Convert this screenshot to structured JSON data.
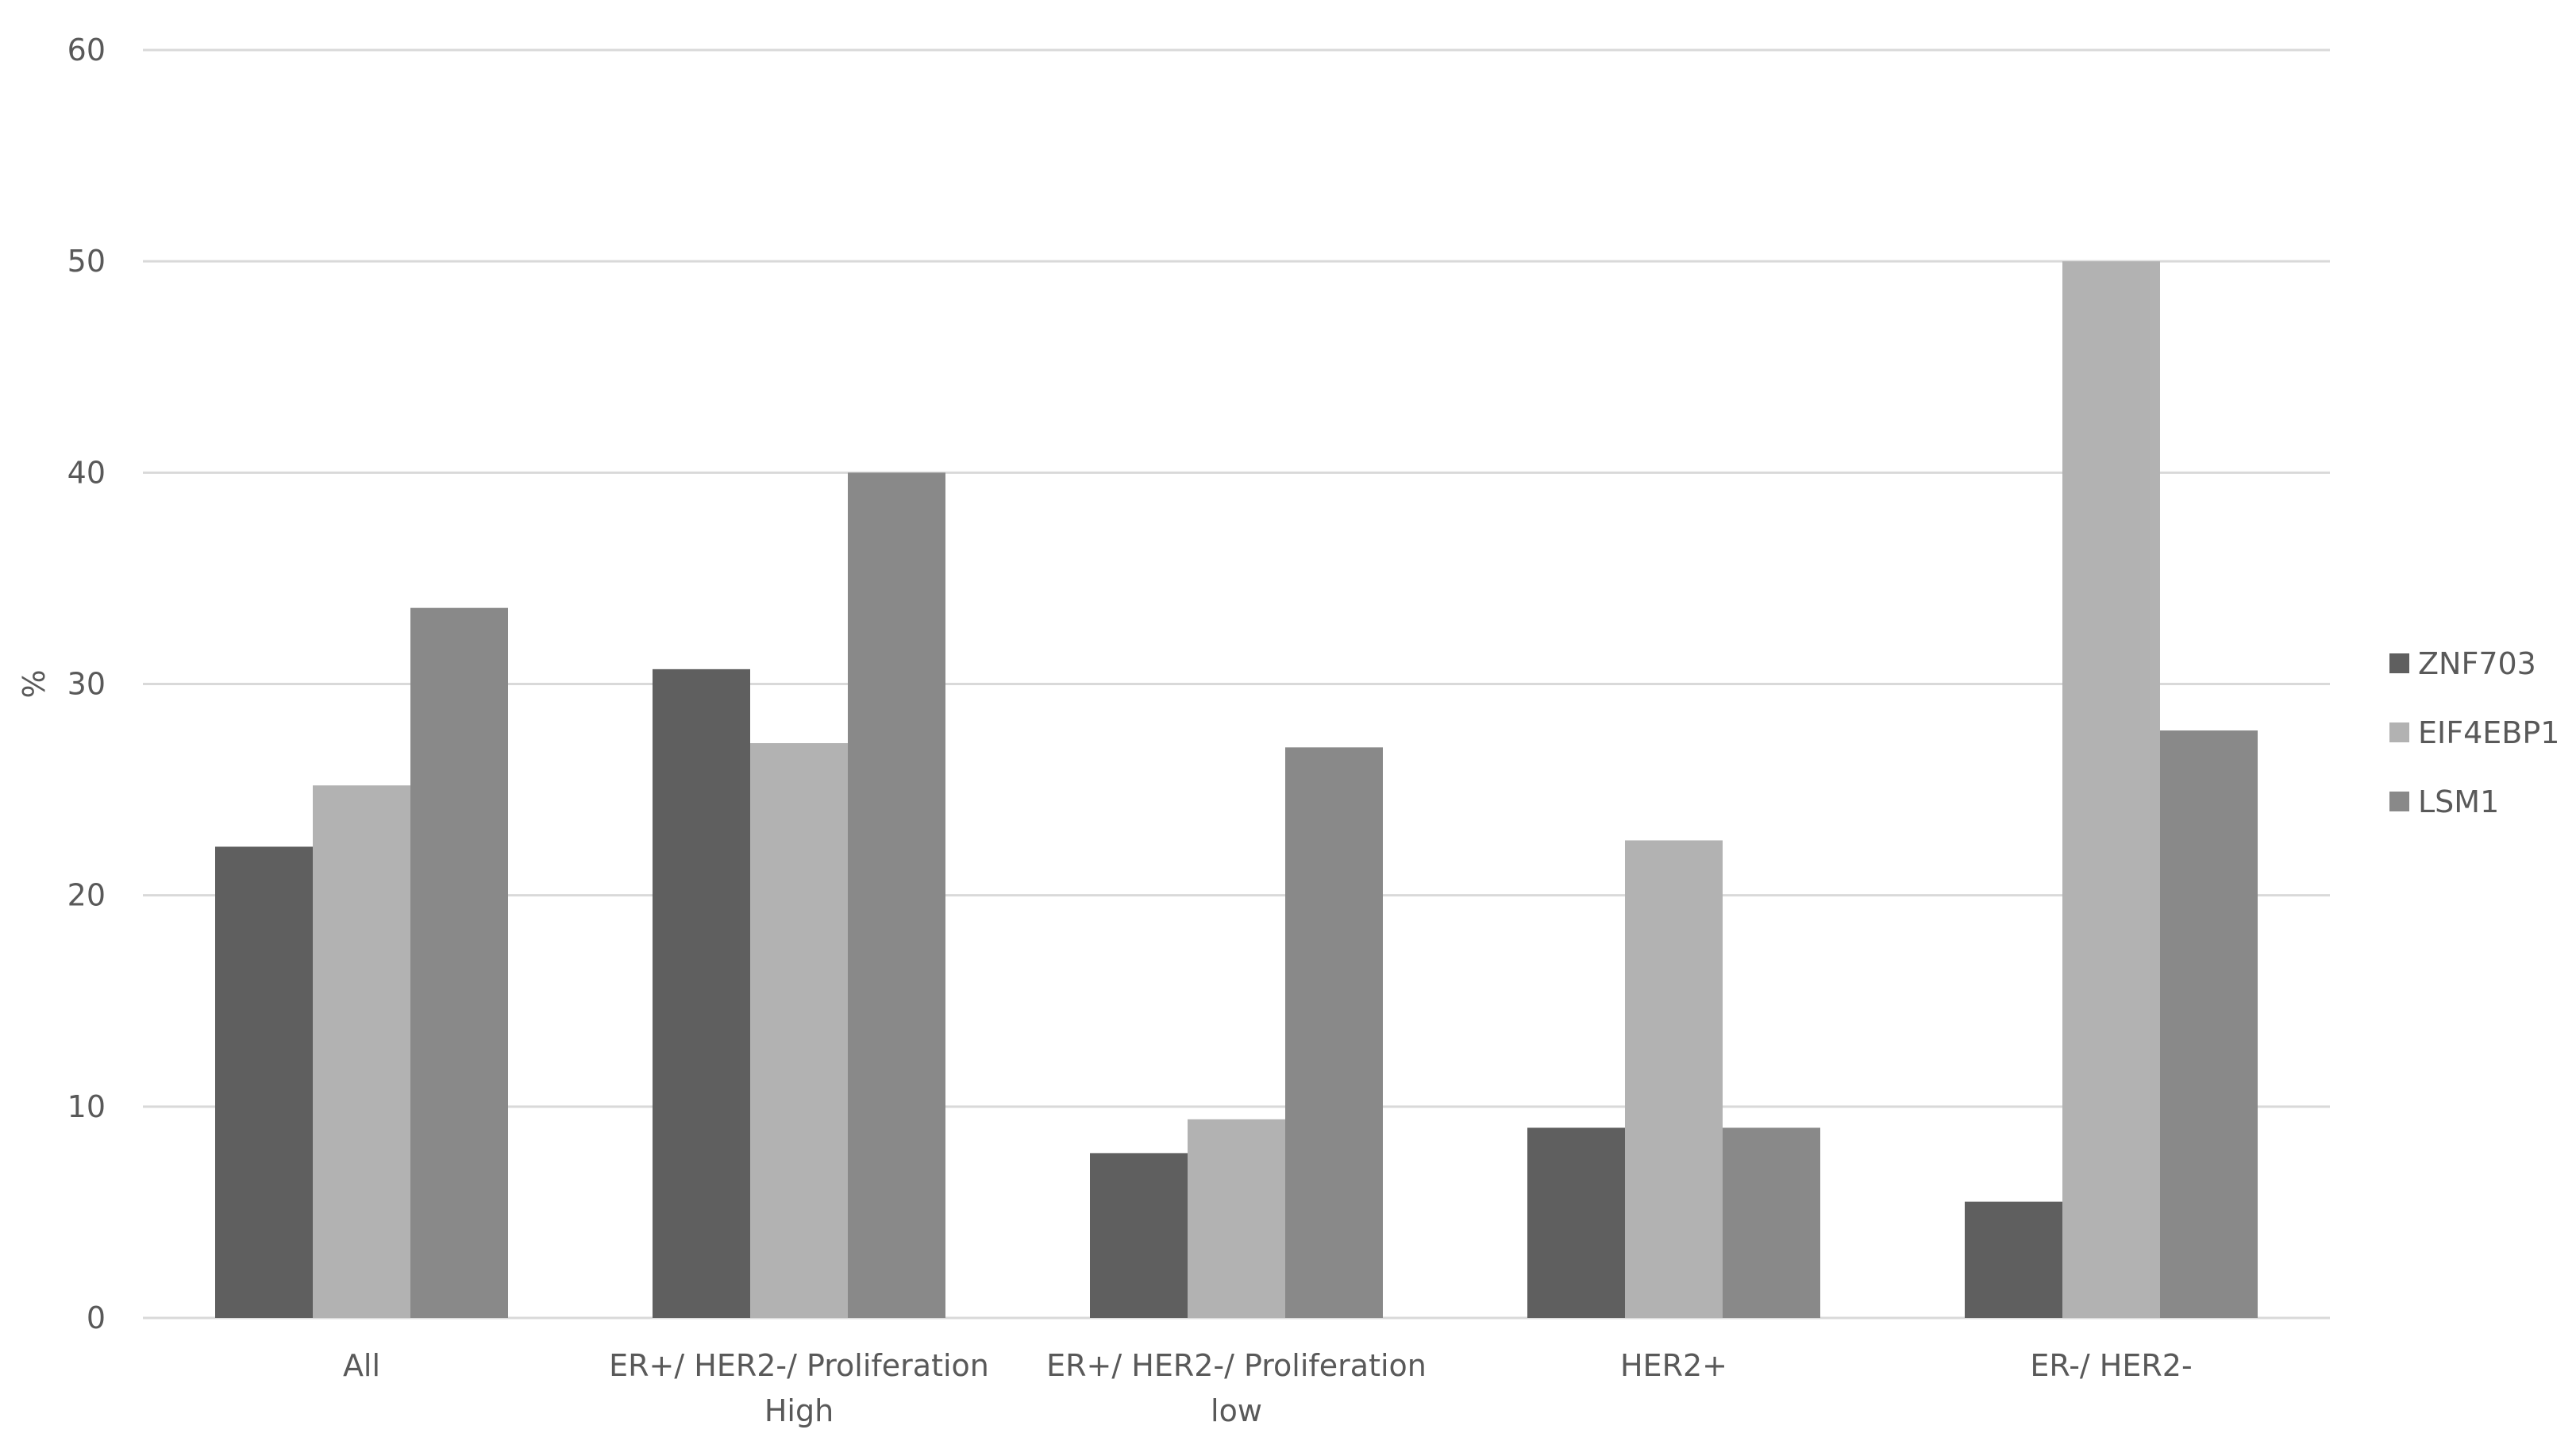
{
  "chart_data": {
    "type": "bar",
    "title": "",
    "xlabel": "",
    "ylabel": "%",
    "ylim": [
      0,
      60
    ],
    "yticks": [
      0,
      10,
      20,
      30,
      40,
      50,
      60
    ],
    "grid": true,
    "legend_position": "right",
    "categories": [
      [
        "All"
      ],
      [
        "ER+/ HER2-/ Proliferation",
        "High"
      ],
      [
        "ER+/ HER2-/ Proliferation",
        "low"
      ],
      [
        "HER2+"
      ],
      [
        "ER-/ HER2-"
      ]
    ],
    "series": [
      {
        "name": "ZNF703",
        "color": "#5f5f5f",
        "values": [
          22.3,
          30.7,
          7.8,
          9.0,
          5.5
        ]
      },
      {
        "name": "EIF4EBP1",
        "color": "#b2b2b2",
        "values": [
          25.2,
          27.2,
          9.4,
          22.6,
          50.0
        ]
      },
      {
        "name": "LSM1",
        "color": "#898989",
        "values": [
          33.6,
          40.0,
          27.0,
          9.0,
          27.8
        ]
      }
    ]
  }
}
